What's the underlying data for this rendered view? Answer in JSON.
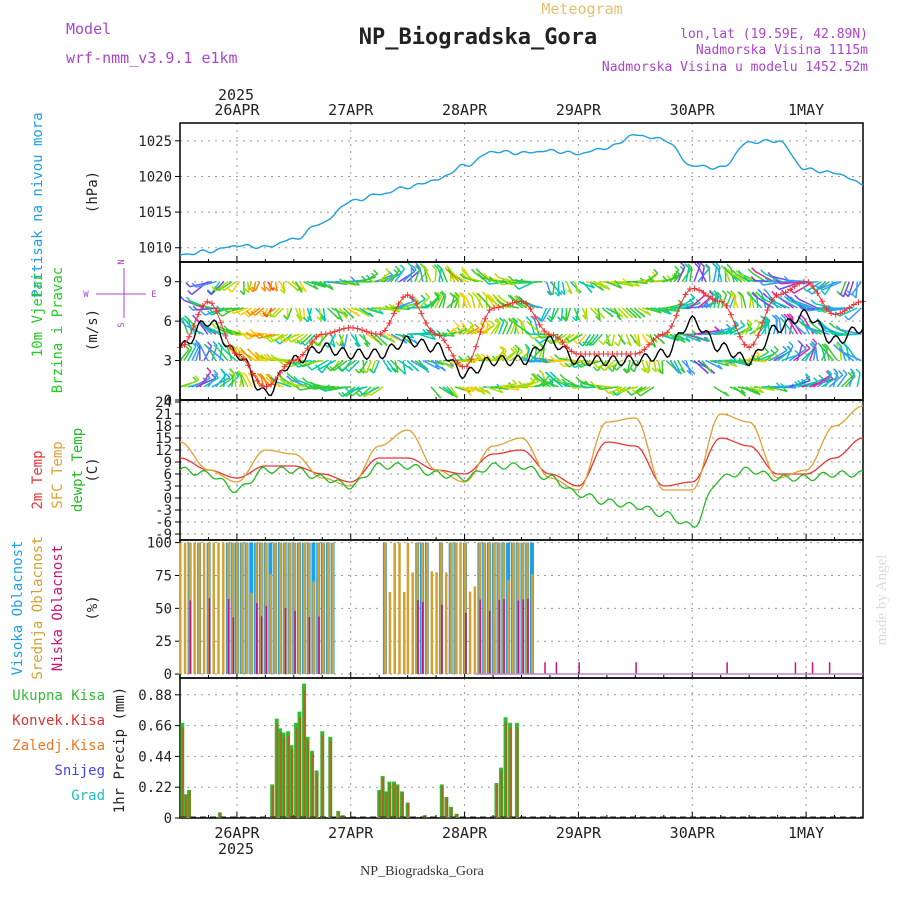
{
  "header": {
    "model_label": "Model",
    "model_name": "wrf-nmm_v3.9.1 e1km",
    "product": "Meteogram",
    "station": "NP_Biogradska_Gora",
    "coords": "lon,lat (19.59E, 42.89N)",
    "elevation": "Nadmorska Visina 1115m",
    "model_elevation": "Nadmorska Visina u modelu 1452.52m",
    "footer_station": "NP_Biogradska_Gora",
    "credit": "made by Angel"
  },
  "colors": {
    "pressure": "#1e9fe0",
    "temp_2m": "#ee3333",
    "temp_sfc": "#e0a030",
    "dewpoint": "#22bb22",
    "cloud_high": "#1ea0e6",
    "cloud_mid": "#d4a030",
    "cloud_low": "#cc1177",
    "precip_total": "#33bb33",
    "precip_conv": "#dd3333",
    "precip_frz": "#ee7722",
    "snow": "#4444ee",
    "hail": "#22bbbb",
    "ylabel_pressure": "#1ea0e6",
    "ylabel_wind": "#22cc22",
    "wind_legend": "#aa44cc"
  },
  "chart_data": [
    {
      "type": "line",
      "id": "pressure",
      "ylabel": "Pritisak na nivou mora",
      "units": "(hPa)",
      "ylim": [
        1008,
        1027.5
      ],
      "yticks": [
        1010,
        1015,
        1020,
        1025
      ],
      "x_days": [
        0.0,
        0.25,
        0.5,
        0.75,
        1.0,
        1.25,
        1.5,
        1.75,
        2.0,
        2.25,
        2.5,
        2.75,
        3.0,
        3.25,
        3.5,
        3.75,
        4.0,
        4.25,
        4.5,
        4.75,
        5.0,
        5.25,
        5.5,
        5.75,
        6.0
      ],
      "series": [
        {
          "values": [
            1009,
            1009.5,
            1010.3,
            1010.1,
            1011.2,
            1013.5,
            1016.5,
            1017.5,
            1018.5,
            1019.5,
            1021.5,
            1023.5,
            1023.3,
            1023.6,
            1023.2,
            1024.0,
            1025.8,
            1025.2,
            1021.5,
            1021.2,
            1024.8,
            1025.0,
            1021.0,
            1020.5,
            1019.0
          ]
        }
      ]
    },
    {
      "type": "line",
      "id": "wind",
      "ylabel": "10m Vjetar Brzina i Pravac",
      "units": "(m/s)",
      "legend_text": [
        "N",
        "W",
        "E",
        "S"
      ],
      "ylim": [
        0,
        10.5
      ],
      "yticks": [
        0,
        3,
        6,
        9
      ],
      "x_days": [
        0.0,
        0.25,
        0.5,
        0.75,
        1.0,
        1.25,
        1.5,
        1.75,
        2.0,
        2.25,
        2.5,
        2.75,
        3.0,
        3.25,
        3.5,
        3.75,
        4.0,
        4.25,
        4.5,
        4.75,
        5.0,
        5.25,
        5.5,
        5.75,
        6.0
      ],
      "series": [
        {
          "values": [
            4.0,
            6.0,
            3.5,
            0.5,
            3.0,
            4.0,
            3.5,
            3.5,
            4.5,
            4.0,
            2.0,
            3.0,
            3.0,
            4.5,
            3.0,
            3.0,
            3.0,
            3.5,
            6.0,
            4.0,
            3.0,
            5.5,
            6.5,
            4.5,
            5.5
          ]
        },
        {
          "values": [
            4.0,
            7.5,
            3.5,
            1.0,
            3.0,
            5.0,
            5.5,
            5.0,
            8.0,
            5.0,
            2.5,
            7.0,
            7.5,
            5.0,
            3.5,
            3.5,
            3.5,
            5.0,
            8.5,
            7.5,
            4.0,
            8.0,
            9.0,
            6.5,
            7.5
          ]
        }
      ]
    },
    {
      "type": "line",
      "id": "temperature",
      "ylabel": [
        "2m Temp",
        "SFC Temp",
        "dewpt Temp"
      ],
      "units": "(C)",
      "ylim": [
        -10.5,
        24.5
      ],
      "yticks": [
        -9,
        -6,
        -3,
        0,
        3,
        6,
        9,
        12,
        15,
        18,
        21,
        24
      ],
      "x_days": [
        0.0,
        0.25,
        0.5,
        0.75,
        1.0,
        1.25,
        1.5,
        1.75,
        2.0,
        2.25,
        2.5,
        2.75,
        3.0,
        3.25,
        3.5,
        3.75,
        4.0,
        4.25,
        4.5,
        4.75,
        5.0,
        5.25,
        5.5,
        5.75,
        6.0
      ],
      "series": [
        {
          "values": [
            10,
            7,
            5,
            8,
            8,
            6,
            4,
            10,
            10,
            7,
            6,
            11,
            12,
            6,
            3,
            14,
            13,
            3,
            4,
            15,
            13,
            6,
            6,
            10,
            15
          ]
        },
        {
          "values": [
            14,
            7,
            4,
            12,
            11,
            5,
            3,
            13,
            17,
            7,
            4,
            13,
            15,
            5,
            2,
            19,
            20,
            2,
            2,
            21,
            19,
            5,
            7,
            18,
            23
          ]
        },
        {
          "values": [
            7,
            6,
            2,
            7,
            7,
            5,
            3,
            8,
            8,
            6,
            5,
            8,
            8,
            5,
            1,
            -1,
            -2,
            -4,
            -7,
            5,
            7,
            5,
            5,
            6,
            6
          ]
        }
      ]
    },
    {
      "type": "bar",
      "id": "clouds",
      "ylabel": [
        "Visoka Oblacnost",
        "Srednja Oblacnost",
        "Niska Oblacnost"
      ],
      "units": "(%)",
      "ylim": [
        -3,
        102
      ],
      "yticks": [
        0,
        25,
        50,
        75,
        100
      ],
      "day_spans": [
        [
          0.0,
          0.5
        ],
        [
          0.5,
          1.35
        ],
        [
          1.8,
          2.0
        ],
        [
          2.0,
          3.1
        ]
      ],
      "sparse_low": [
        3.2,
        3.3,
        3.5,
        4.0,
        4.8,
        5.4,
        5.55,
        5.7
      ]
    },
    {
      "type": "bar",
      "id": "precip",
      "ylabel": "1hr Precip (mm)",
      "legend": [
        "Ukupna Kisa",
        "Konvek.Kisa",
        "Zaledj.Kisa",
        "Snijeg",
        "Grad"
      ],
      "ylim": [
        0,
        1.0
      ],
      "yticks": [
        0,
        0.22,
        0.44,
        0.66,
        0.88
      ],
      "x_days": [
        0.02,
        0.05,
        0.08,
        0.1,
        0.35,
        0.47,
        0.81,
        0.85,
        0.88,
        0.91,
        0.95,
        0.98,
        1.02,
        1.05,
        1.09,
        1.12,
        1.16,
        1.2,
        1.25,
        1.32,
        1.35,
        1.39,
        1.43,
        1.48,
        1.75,
        1.78,
        1.81,
        1.84,
        1.88,
        1.91,
        1.95,
        2.0,
        2.1,
        2.15,
        2.3,
        2.34,
        2.38,
        2.43,
        2.78,
        2.82,
        2.86,
        2.9,
        2.96
      ],
      "series": [
        {
          "values": [
            0.68,
            0.17,
            0.2,
            0.0,
            0.04,
            0.0,
            0.24,
            0.71,
            0.64,
            0.61,
            0.62,
            0.52,
            0.68,
            0.76,
            0.96,
            0.58,
            0.48,
            0.34,
            0.62,
            0.58,
            0.0,
            0.05,
            0.02,
            0.0,
            0.2,
            0.3,
            0.19,
            0.26,
            0.26,
            0.24,
            0.19,
            0.11,
            0.0,
            0.02,
            0.24,
            0.15,
            0.08,
            0.03,
            0.25,
            0.36,
            0.72,
            0.68,
            0.68
          ]
        }
      ]
    }
  ],
  "x_axis": {
    "year": "2025",
    "days": [
      "26APR",
      "27APR",
      "28APR",
      "29APR",
      "30APR",
      "1MAY"
    ],
    "range_days": [
      -0.5,
      5.5
    ]
  }
}
